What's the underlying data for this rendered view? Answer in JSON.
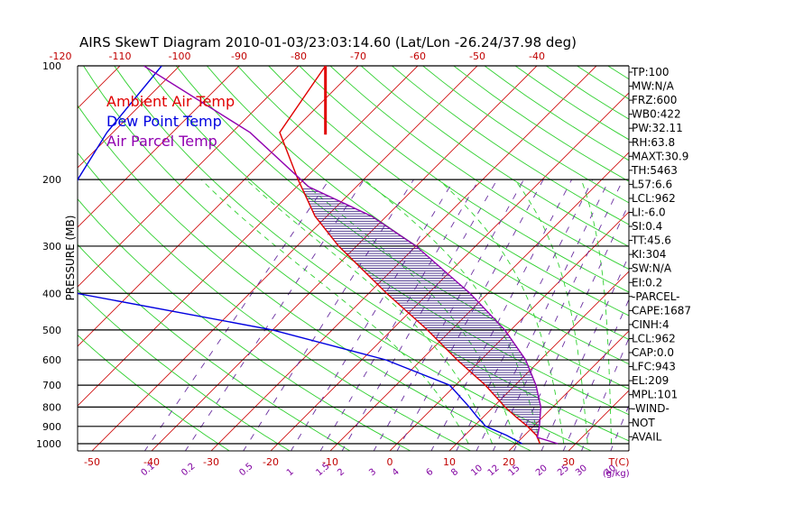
{
  "chart_data": {
    "type": "line",
    "title": "AIRS SkewT Diagram 2010-01-03/23:03:14.60 (Lat/Lon -26.24/37.98 deg)",
    "ylabel": "PRESSURE (MB)",
    "pressure_levels": [
      100,
      200,
      300,
      400,
      500,
      600,
      700,
      800,
      900,
      1000
    ],
    "pressure_tick_labels": [
      "100",
      "200",
      "300",
      "400",
      "500",
      "600",
      "700",
      "800",
      "900",
      "1000"
    ],
    "top_temp_labels": [
      "-120",
      "-110",
      "-100",
      "-90",
      "-80",
      "-70",
      "-60",
      "-50",
      "-40"
    ],
    "bottom_temp_labels": [
      "-50",
      "-40",
      "-30",
      "-20",
      "-10",
      "0",
      "10",
      "20",
      "30"
    ],
    "bottom_axis_unit": "T(C)",
    "mixing_ratio_labels": [
      "0.1",
      "0.2",
      "0.5",
      "1",
      "1.5",
      "2",
      "3",
      "4",
      "6",
      "8",
      "10",
      "12",
      "15",
      "20",
      "25",
      "30",
      "40"
    ],
    "mixing_ratio_unit": "(g/kg)",
    "ylim": [
      1050,
      100
    ],
    "legend": [
      {
        "label": "Ambient Air Temp",
        "color": "#e00000"
      },
      {
        "label": "Dew Point Temp",
        "color": "#0000e0"
      },
      {
        "label": "Air Parcel Temp",
        "color": "#9000b0"
      }
    ],
    "series": [
      {
        "name": "Ambient Air Temp",
        "color": "#e00000",
        "points": [
          {
            "p": 1000,
            "t": 24.0
          },
          {
            "p": 950,
            "t": 22.0
          },
          {
            "p": 900,
            "t": 19.0
          },
          {
            "p": 850,
            "t": 15.5
          },
          {
            "p": 800,
            "t": 12.0
          },
          {
            "p": 700,
            "t": 5.0
          },
          {
            "p": 600,
            "t": -4.0
          },
          {
            "p": 500,
            "t": -14.0
          },
          {
            "p": 400,
            "t": -27.0
          },
          {
            "p": 300,
            "t": -43.0
          },
          {
            "p": 250,
            "t": -52.0
          },
          {
            "p": 200,
            "t": -61.0
          },
          {
            "p": 150,
            "t": -72.0
          },
          {
            "p": 100,
            "t": -75.5
          }
        ]
      },
      {
        "name": "Dew Point Temp",
        "color": "#0000e0",
        "points": [
          {
            "p": 1000,
            "t": 21.0
          },
          {
            "p": 950,
            "t": 17.0
          },
          {
            "p": 900,
            "t": 12.0
          },
          {
            "p": 850,
            "t": 9.0
          },
          {
            "p": 800,
            "t": 6.0
          },
          {
            "p": 700,
            "t": -1.0
          },
          {
            "p": 600,
            "t": -16.0
          },
          {
            "p": 500,
            "t": -40.0
          },
          {
            "p": 400,
            "t": -79.0
          },
          {
            "p": 300,
            "t": -95.0
          },
          {
            "p": 250,
            "t": -94.0
          },
          {
            "p": 200,
            "t": -98.0
          },
          {
            "p": 150,
            "t": -101.0
          },
          {
            "p": 100,
            "t": -103.0
          }
        ]
      },
      {
        "name": "Air Parcel Temp",
        "color": "#9000b0",
        "points": [
          {
            "p": 1000,
            "t": 27.0
          },
          {
            "p": 962,
            "t": 22.5
          },
          {
            "p": 900,
            "t": 21.0
          },
          {
            "p": 800,
            "t": 18.0
          },
          {
            "p": 700,
            "t": 13.5
          },
          {
            "p": 600,
            "t": 7.5
          },
          {
            "p": 500,
            "t": -1.0
          },
          {
            "p": 400,
            "t": -13.0
          },
          {
            "p": 300,
            "t": -30.0
          },
          {
            "p": 250,
            "t": -42.5
          },
          {
            "p": 209,
            "t": -58.0
          },
          {
            "p": 150,
            "t": -77.0
          },
          {
            "p": 100,
            "t": -106.0
          }
        ]
      }
    ],
    "indices": [
      "TP:100",
      "MW:N/A",
      "FRZ:600",
      "WB0:422",
      "PW:32.11",
      "RH:63.8",
      "MAXT:30.9",
      "TH:5463",
      "L57:6.6",
      "LCL:962",
      "LI:-6.0",
      "SI:0.4",
      "TT:45.6",
      "KI:304",
      "SW:N/A",
      "EI:0.2",
      "-PARCEL-",
      "CAPE:1687",
      "CINH:4",
      "LCL:962",
      "CAP:0.0",
      "LFC:943",
      "EL:209",
      "MPL:101",
      "-WIND-",
      "NOT",
      "AVAIL"
    ]
  }
}
